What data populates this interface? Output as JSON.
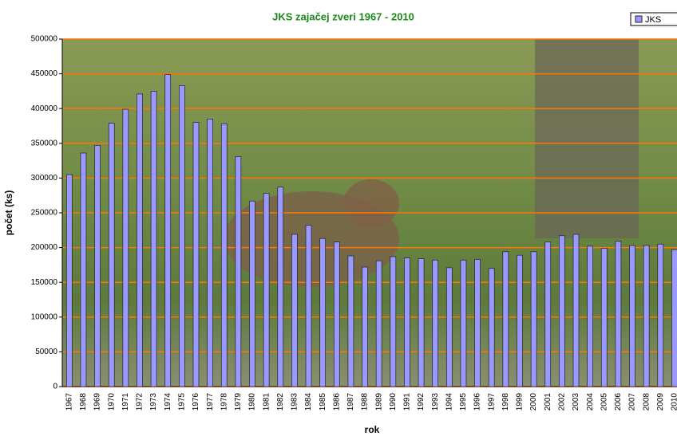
{
  "chart_data": {
    "type": "bar",
    "title": "JKS zajačej zveri 1967 - 2010",
    "xlabel": "rok",
    "ylabel": "počet (ks)",
    "categories": [
      "1967",
      "1968",
      "1969",
      "1970",
      "1971",
      "1972",
      "1973",
      "1974",
      "1975",
      "1976",
      "1977",
      "1978",
      "1979",
      "1980",
      "1981",
      "1982",
      "1983",
      "1984",
      "1985",
      "1986",
      "1987",
      "1988",
      "1989",
      "1990",
      "1991",
      "1992",
      "1993",
      "1994",
      "1995",
      "1996",
      "1997",
      "1998",
      "1999",
      "2000",
      "2001",
      "2002",
      "2003",
      "2004",
      "2005",
      "2006",
      "2007",
      "2008",
      "2009",
      "2010"
    ],
    "series": [
      {
        "name": "JKS",
        "color": "#9999ff",
        "values": [
          305000,
          336000,
          347000,
          379000,
          399000,
          421000,
          425000,
          449000,
          433000,
          380000,
          385000,
          378000,
          331000,
          267000,
          278000,
          287000,
          219000,
          232000,
          213000,
          208000,
          188000,
          172000,
          181000,
          187000,
          185000,
          184000,
          182000,
          171000,
          182000,
          183000,
          170000,
          194000,
          189000,
          194000,
          208000,
          217000,
          219000,
          202000,
          199000,
          209000,
          203000,
          203000,
          205000,
          197000
        ]
      }
    ],
    "ylim": [
      0,
      500000
    ],
    "yticks": [
      0,
      50000,
      100000,
      150000,
      200000,
      250000,
      300000,
      350000,
      400000,
      450000,
      500000
    ],
    "grid": true,
    "grid_color": "#ff7700",
    "legend": "top-right"
  }
}
